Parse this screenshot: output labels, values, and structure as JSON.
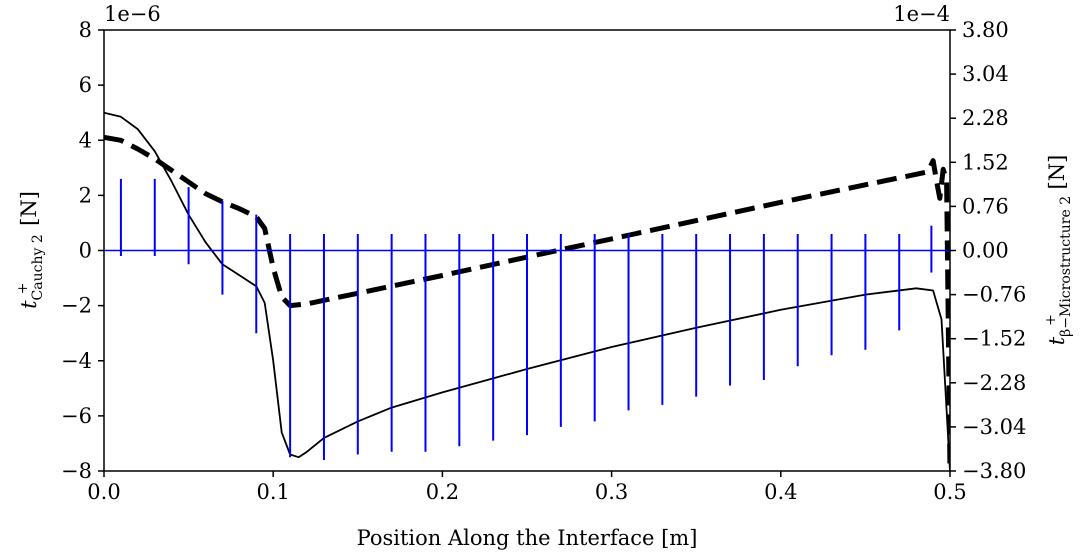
{
  "chart_data": {
    "type": "line",
    "xlabel": "Position Along the Interface [m]",
    "xlim": [
      0.0,
      0.5
    ],
    "x_ticks": [
      "0.0",
      "0.1",
      "0.2",
      "0.3",
      "0.4",
      "0.5"
    ],
    "x_tick_values": [
      0.0,
      0.1,
      0.2,
      0.3,
      0.4,
      0.5
    ],
    "left_axis": {
      "label_main": "t",
      "label_sup": "+",
      "label_sub": "Cauchy 2",
      "label_unit": " [N]",
      "offset_text": "1e−6",
      "ylim": [
        -8,
        8
      ],
      "ticks": [
        "−8",
        "−6",
        "−4",
        "−2",
        "0",
        "2",
        "4",
        "6",
        "8"
      ],
      "tick_values": [
        -8,
        -6,
        -4,
        -2,
        0,
        2,
        4,
        6,
        8
      ]
    },
    "right_axis": {
      "label_main": "t",
      "label_sup": "+",
      "label_sub": "β−Microstructure 2",
      "label_unit": " [N]",
      "offset_text": "1e−4",
      "ylim": [
        -3.8,
        3.8
      ],
      "ticks": [
        "−3.80",
        "−3.04",
        "−2.28",
        "−1.52",
        "−0.76",
        "0.00",
        "0.76",
        "1.52",
        "2.28",
        "3.04",
        "3.80"
      ],
      "tick_values": [
        -3.8,
        -3.04,
        -2.28,
        -1.52,
        -0.76,
        0.0,
        0.76,
        1.52,
        2.28,
        3.04,
        3.8
      ]
    },
    "series": [
      {
        "axis": "left",
        "color": "#000000",
        "style": "solid",
        "x": [
          0.0,
          0.01,
          0.02,
          0.03,
          0.04,
          0.05,
          0.06,
          0.07,
          0.08,
          0.09,
          0.095,
          0.1,
          0.105,
          0.11,
          0.115,
          0.12,
          0.13,
          0.15,
          0.17,
          0.2,
          0.25,
          0.3,
          0.35,
          0.4,
          0.45,
          0.48,
          0.49,
          0.495,
          0.5
        ],
        "y": [
          5.0,
          4.85,
          4.4,
          3.6,
          2.5,
          1.3,
          0.3,
          -0.5,
          -0.9,
          -1.3,
          -1.9,
          -4.0,
          -6.6,
          -7.4,
          -7.5,
          -7.3,
          -6.8,
          -6.2,
          -5.7,
          -5.15,
          -4.3,
          -3.5,
          -2.8,
          -2.15,
          -1.6,
          -1.37,
          -1.45,
          -2.5,
          -8.0
        ]
      },
      {
        "axis": "right",
        "color": "#000000",
        "style": "dashed",
        "x": [
          0.0,
          0.01,
          0.02,
          0.03,
          0.04,
          0.05,
          0.06,
          0.07,
          0.08,
          0.09,
          0.095,
          0.1,
          0.105,
          0.11,
          0.12,
          0.2,
          0.26,
          0.3,
          0.4,
          0.486,
          0.488,
          0.49,
          0.492,
          0.494,
          0.496,
          0.498,
          0.5
        ],
        "y": [
          1.95,
          1.9,
          1.75,
          1.58,
          1.38,
          1.18,
          0.98,
          0.84,
          0.72,
          0.58,
          0.38,
          -0.3,
          -0.8,
          -0.95,
          -0.92,
          -0.43,
          -0.05,
          0.2,
          0.83,
          1.35,
          1.42,
          1.55,
          1.2,
          0.9,
          1.4,
          1.2,
          -3.8
        ]
      },
      {
        "axis": "left",
        "color": "#0000ff",
        "style": "spikes",
        "baseline": 0,
        "spikes": [
          {
            "x": 0.01,
            "up": 2.6,
            "down": -0.2
          },
          {
            "x": 0.03,
            "up": 2.6,
            "down": -0.2
          },
          {
            "x": 0.05,
            "up": 2.3,
            "down": -0.5
          },
          {
            "x": 0.07,
            "up": 1.8,
            "down": -1.6
          },
          {
            "x": 0.09,
            "up": 1.3,
            "down": -3.0
          },
          {
            "x": 0.11,
            "up": 0.6,
            "down": -7.5
          },
          {
            "x": 0.13,
            "up": 0.6,
            "down": -7.6
          },
          {
            "x": 0.15,
            "up": 0.6,
            "down": -7.4
          },
          {
            "x": 0.17,
            "up": 0.6,
            "down": -7.3
          },
          {
            "x": 0.19,
            "up": 0.6,
            "down": -7.3
          },
          {
            "x": 0.21,
            "up": 0.6,
            "down": -7.1
          },
          {
            "x": 0.23,
            "up": 0.6,
            "down": -6.9
          },
          {
            "x": 0.25,
            "up": 0.6,
            "down": -6.7
          },
          {
            "x": 0.27,
            "up": 0.6,
            "down": -6.4
          },
          {
            "x": 0.29,
            "up": 0.6,
            "down": -6.2
          },
          {
            "x": 0.31,
            "up": 0.6,
            "down": -5.8
          },
          {
            "x": 0.33,
            "up": 0.6,
            "down": -5.6
          },
          {
            "x": 0.35,
            "up": 0.6,
            "down": -5.3
          },
          {
            "x": 0.37,
            "up": 0.6,
            "down": -4.9
          },
          {
            "x": 0.39,
            "up": 0.6,
            "down": -4.7
          },
          {
            "x": 0.41,
            "up": 0.6,
            "down": -4.2
          },
          {
            "x": 0.43,
            "up": 0.6,
            "down": -3.8
          },
          {
            "x": 0.45,
            "up": 0.6,
            "down": -3.6
          },
          {
            "x": 0.47,
            "up": 0.6,
            "down": -2.9
          },
          {
            "x": 0.489,
            "up": 0.9,
            "down": -0.8
          }
        ]
      }
    ]
  }
}
